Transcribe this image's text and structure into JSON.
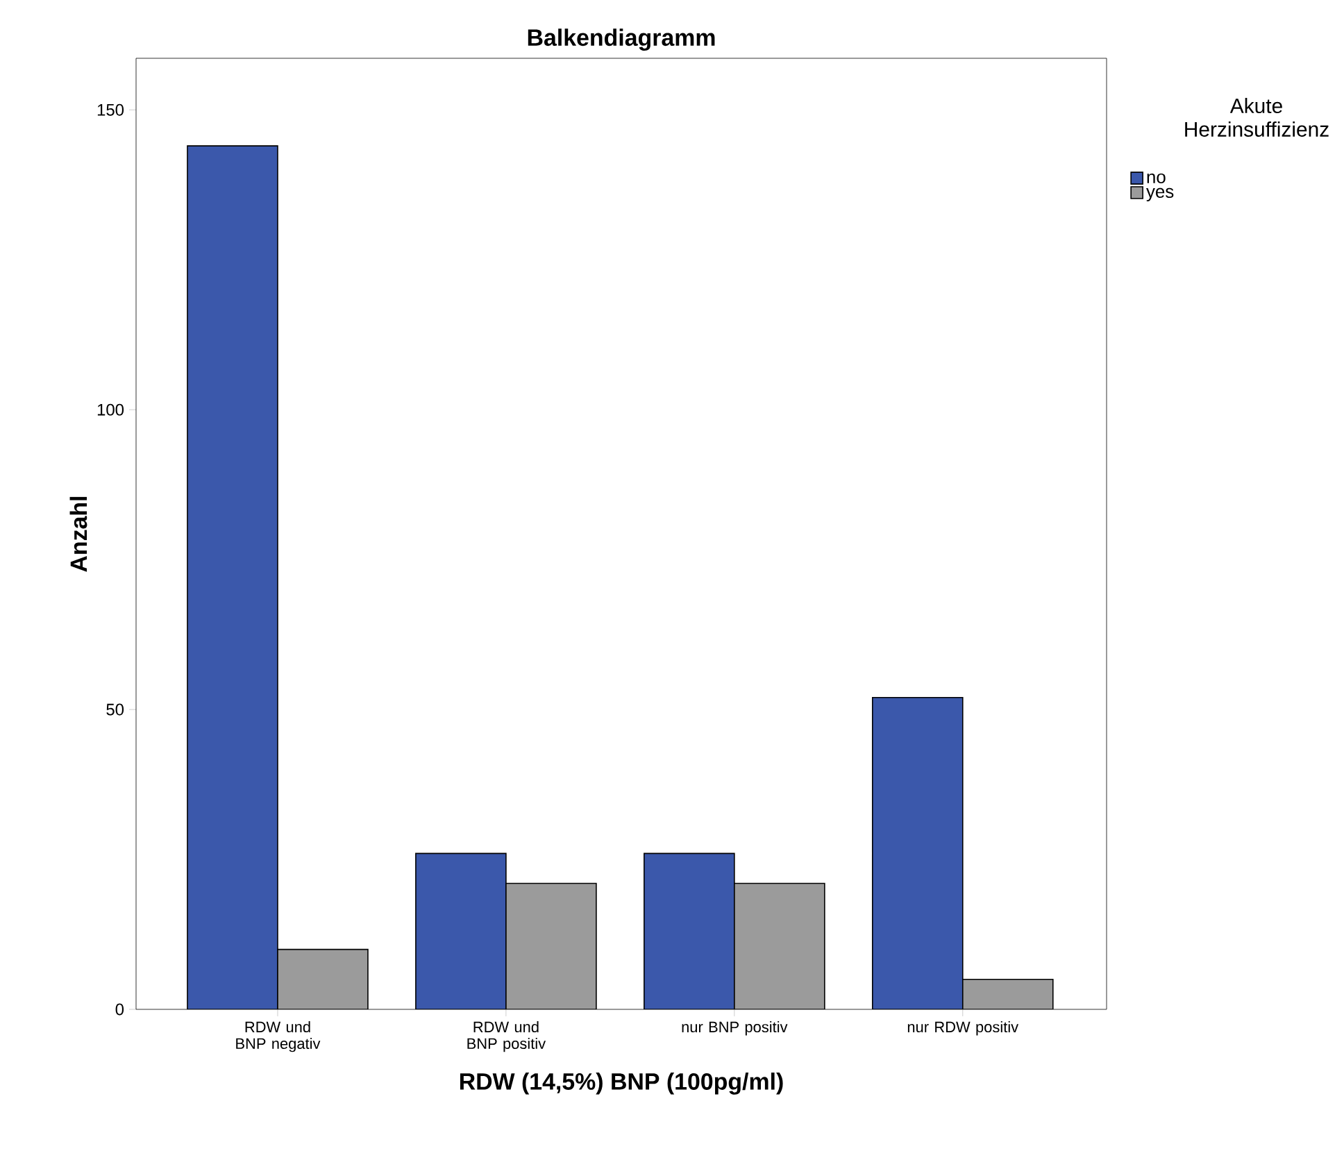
{
  "chart_data": {
    "type": "bar",
    "title": "Balkendiagramm",
    "xlabel": "RDW (14,5%) BNP (100pg/ml)",
    "ylabel": "Anzahl",
    "legend_title": "Akute Herzinsuffizienz",
    "categories": [
      "RDW und BNP negativ",
      "RDW und BNP positiv",
      "nur BNP positiv",
      "nur RDW positiv"
    ],
    "series": [
      {
        "name": "no",
        "color": "#3b58ab",
        "values": [
          144,
          26,
          26,
          52
        ]
      },
      {
        "name": "yes",
        "color": "#9b9b9b",
        "values": [
          10,
          21,
          21,
          5
        ]
      }
    ],
    "ylim": [
      0,
      158.6
    ],
    "yticks": [
      0,
      50,
      100,
      150
    ],
    "grid": false,
    "legend": "top right"
  }
}
